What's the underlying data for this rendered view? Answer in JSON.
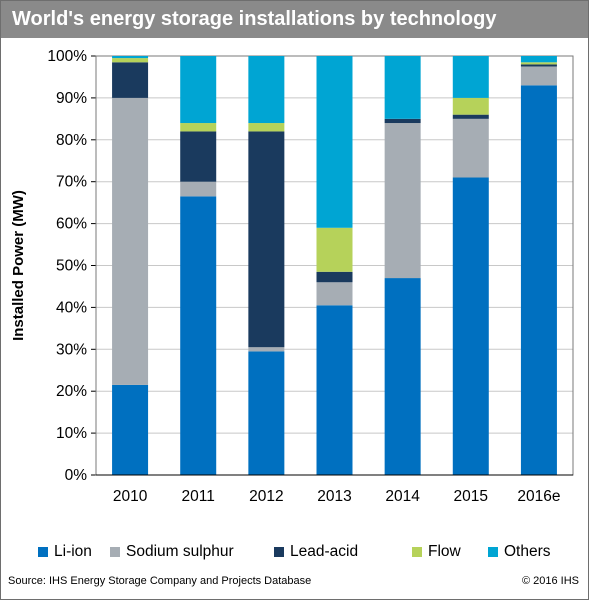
{
  "header": {
    "title": "World's energy storage installations by technology"
  },
  "footer": {
    "source": "Source: IHS Energy Storage Company and Projects Database",
    "copyright": "© 2016 IHS"
  },
  "colors": {
    "li_ion": "#0070c0",
    "sodium_sulphur": "#a6adb4",
    "lead_acid": "#1a3a5e",
    "flow": "#b6d25a",
    "others": "#00a5d3",
    "title_bar": "#8a8a8a"
  },
  "chart_data": {
    "type": "bar",
    "stacked": true,
    "title": "World's energy storage installations by technology",
    "xlabel": "",
    "ylabel": "Installed Power (MW)",
    "ylim": [
      0,
      100
    ],
    "y_ticks": [
      "0%",
      "10%",
      "20%",
      "30%",
      "40%",
      "50%",
      "60%",
      "70%",
      "80%",
      "90%",
      "100%"
    ],
    "grid": true,
    "legend_position": "bottom",
    "categories": [
      "2010",
      "2011",
      "2012",
      "2013",
      "2014",
      "2015",
      "2016e"
    ],
    "series": [
      {
        "name": "Li-ion",
        "color": "#0070c0",
        "values": [
          21.5,
          66.5,
          29.5,
          40.5,
          47,
          71,
          93
        ]
      },
      {
        "name": "Sodium sulphur",
        "color": "#a6adb4",
        "values": [
          68.5,
          3.5,
          1,
          5.5,
          37,
          14,
          4.5
        ]
      },
      {
        "name": "Lead-acid",
        "color": "#1a3a5e",
        "values": [
          8.5,
          12,
          51.5,
          2.5,
          1,
          1,
          0.5
        ]
      },
      {
        "name": "Flow",
        "color": "#b6d25a",
        "values": [
          1,
          2,
          2,
          10.5,
          0,
          4,
          0.5
        ]
      },
      {
        "name": "Others",
        "color": "#00a5d3",
        "values": [
          0.5,
          16,
          16,
          41,
          15,
          10,
          1.5
        ]
      }
    ]
  }
}
